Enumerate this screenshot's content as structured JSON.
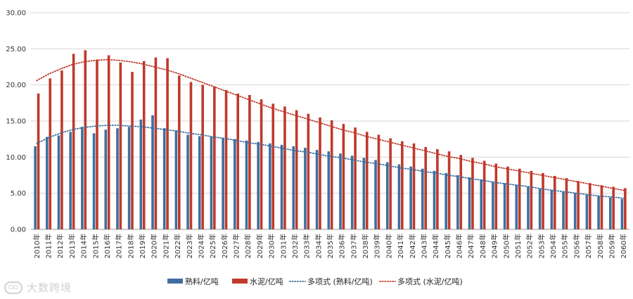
{
  "chart_data": {
    "type": "bar",
    "title": "",
    "xlabel": "",
    "ylabel": "",
    "ylim": [
      0,
      30
    ],
    "yticks": [
      "0.00",
      "5.00",
      "10.00",
      "15.00",
      "20.00",
      "25.00",
      "30.00"
    ],
    "grid": true,
    "legend_position": "bottom",
    "categories": [
      "2010年",
      "2011年",
      "2012年",
      "2013年",
      "2014年",
      "2015年",
      "2016年",
      "2017年",
      "2018年",
      "2019年",
      "2020年",
      "2021年",
      "2022年",
      "2023年",
      "2024年",
      "2025年",
      "2026年",
      "2027年",
      "2028年",
      "2029年",
      "2030年",
      "2031年",
      "2032年",
      "2033年",
      "2034年",
      "2035年",
      "2036年",
      "2037年",
      "2038年",
      "2039年",
      "2040年",
      "2041年",
      "2042年",
      "2043年",
      "2044年",
      "2045年",
      "2046年",
      "2047年",
      "2048年",
      "2049年",
      "2050年",
      "2051年",
      "2052年",
      "2053年",
      "2054年",
      "2055年",
      "2056年",
      "2057年",
      "2058年",
      "2059年",
      "2060年"
    ],
    "series": [
      {
        "name": "熟料/亿吨",
        "color": "#3f6f9e",
        "values": [
          11.5,
          12.8,
          13.0,
          13.5,
          14.2,
          13.3,
          13.8,
          14.0,
          14.2,
          15.2,
          15.8,
          14.0,
          13.7,
          13.1,
          12.9,
          12.8,
          12.6,
          12.5,
          12.3,
          12.1,
          11.9,
          11.7,
          11.5,
          11.3,
          11.0,
          10.8,
          10.5,
          10.2,
          9.9,
          9.6,
          9.3,
          9.0,
          8.7,
          8.4,
          8.1,
          7.8,
          7.5,
          7.2,
          6.9,
          6.6,
          6.4,
          6.1,
          5.9,
          5.6,
          5.4,
          5.2,
          5.0,
          4.8,
          4.6,
          4.4,
          4.2
        ]
      },
      {
        "name": "水泥/亿吨",
        "color": "#c0392b",
        "values": [
          18.8,
          20.9,
          22.0,
          24.3,
          24.8,
          23.5,
          24.1,
          23.1,
          21.8,
          23.3,
          23.8,
          23.7,
          21.3,
          20.4,
          20.0,
          19.8,
          19.3,
          18.8,
          18.6,
          18.0,
          17.4,
          17.0,
          16.5,
          16.0,
          15.5,
          15.1,
          14.6,
          14.1,
          13.5,
          13.1,
          12.6,
          12.2,
          11.9,
          11.4,
          11.1,
          10.8,
          10.3,
          9.9,
          9.5,
          9.1,
          8.7,
          8.4,
          8.1,
          7.8,
          7.4,
          7.1,
          6.7,
          6.4,
          6.1,
          5.9,
          5.7
        ]
      }
    ],
    "trendlines": [
      {
        "name": "多项式 (熟料/亿吨)",
        "color": "#3f6f9e",
        "values": [
          11.9,
          12.7,
          13.3,
          13.8,
          14.1,
          14.3,
          14.4,
          14.4,
          14.3,
          14.2,
          14.0,
          13.8,
          13.6,
          13.3,
          13.1,
          12.8,
          12.6,
          12.3,
          12.0,
          11.8,
          11.5,
          11.2,
          10.9,
          10.7,
          10.4,
          10.1,
          9.9,
          9.6,
          9.3,
          9.1,
          8.8,
          8.5,
          8.3,
          8.0,
          7.8,
          7.5,
          7.3,
          7.0,
          6.8,
          6.5,
          6.3,
          6.1,
          5.9,
          5.6,
          5.4,
          5.2,
          5.0,
          4.8,
          4.6,
          4.5,
          4.3
        ]
      },
      {
        "name": "多项式 (水泥/亿吨)",
        "color": "#c0392b",
        "values": [
          20.6,
          21.5,
          22.2,
          22.8,
          23.2,
          23.4,
          23.5,
          23.4,
          23.2,
          22.9,
          22.5,
          22.1,
          21.6,
          21.0,
          20.4,
          19.8,
          19.2,
          18.6,
          18.0,
          17.4,
          16.8,
          16.3,
          15.8,
          15.3,
          14.8,
          14.3,
          13.8,
          13.4,
          12.9,
          12.5,
          12.1,
          11.7,
          11.3,
          10.9,
          10.5,
          10.1,
          9.8,
          9.4,
          9.1,
          8.7,
          8.4,
          8.1,
          7.8,
          7.5,
          7.2,
          6.9,
          6.6,
          6.3,
          6.0,
          5.7,
          5.4
        ]
      }
    ]
  },
  "legend": {
    "items": [
      {
        "label": "熟料/亿吨",
        "kind": "bar",
        "color": "#3f6f9e"
      },
      {
        "label": "水泥/亿吨",
        "kind": "bar",
        "color": "#c0392b"
      },
      {
        "label": "多项式 (熟料/亿吨)",
        "kind": "dotted-line",
        "color": "#3f6f9e"
      },
      {
        "label": "多项式 (水泥/亿吨)",
        "kind": "dotted-line",
        "color": "#c0392b"
      }
    ]
  },
  "watermark": {
    "text": "大数跨境",
    "icon": "logo-icon"
  }
}
